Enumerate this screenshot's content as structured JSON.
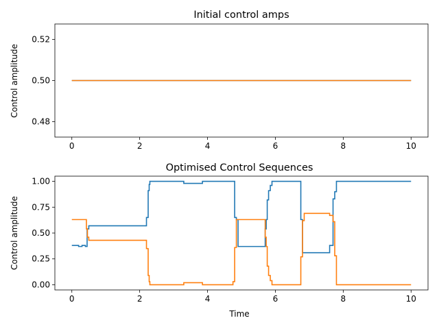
{
  "chart_data": [
    {
      "type": "line",
      "title": "Initial control amps",
      "xlabel": "",
      "ylabel": "Control amplitude",
      "xlim": [
        -0.5,
        10.5
      ],
      "ylim": [
        0.4725,
        0.5275
      ],
      "xticks": [
        0,
        2,
        4,
        6,
        8,
        10
      ],
      "yticks": [
        0.48,
        0.5,
        0.52
      ],
      "ytick_labels": [
        "0.48",
        "0.50",
        "0.52"
      ],
      "grid": false,
      "series": [
        {
          "color": "#1f77b4",
          "x": [
            0,
            10
          ],
          "y": [
            0.5,
            0.5
          ]
        },
        {
          "color": "#ff7f0e",
          "x": [
            0,
            10
          ],
          "y": [
            0.5,
            0.5
          ]
        }
      ]
    },
    {
      "type": "line",
      "step": true,
      "title": "Optimised Control Sequences",
      "xlabel": "Time",
      "ylabel": "Control amplitude",
      "xlim": [
        -0.5,
        10.5
      ],
      "ylim": [
        -0.05,
        1.05
      ],
      "xticks": [
        0,
        2,
        4,
        6,
        8,
        10
      ],
      "yticks": [
        0.0,
        0.25,
        0.5,
        0.75,
        1.0
      ],
      "ytick_labels": [
        "0.00",
        "0.25",
        "0.50",
        "0.75",
        "1.00"
      ],
      "grid": false,
      "series": [
        {
          "color": "#1f77b4",
          "x": [
            0,
            0.2,
            0.3,
            0.4,
            0.45,
            0.5,
            2.2,
            2.25,
            2.28,
            2.3,
            3.3,
            3.85,
            4.8,
            4.85,
            4.9,
            5.7,
            5.73,
            5.76,
            5.8,
            5.85,
            5.9,
            6.75,
            6.8,
            6.85,
            7.6,
            7.7,
            7.75,
            7.8,
            10
          ],
          "y": [
            0.38,
            0.37,
            0.38,
            0.37,
            0.54,
            0.57,
            0.65,
            0.91,
            0.97,
            1.0,
            0.98,
            1.0,
            0.65,
            0.63,
            0.37,
            0.54,
            0.63,
            0.82,
            0.91,
            0.96,
            1.0,
            0.63,
            0.31,
            0.31,
            0.38,
            0.83,
            0.9,
            1.0,
            1.0
          ]
        },
        {
          "color": "#ff7f0e",
          "x": [
            0,
            0.43,
            0.46,
            0.5,
            2.2,
            2.25,
            2.28,
            2.3,
            3.3,
            3.85,
            4.75,
            4.8,
            4.85,
            5.7,
            5.73,
            5.76,
            5.8,
            5.85,
            5.9,
            6.75,
            6.8,
            6.85,
            7.6,
            7.7,
            7.75,
            7.8,
            10
          ],
          "y": [
            0.63,
            0.54,
            0.46,
            0.43,
            0.35,
            0.09,
            0.03,
            0.0,
            0.02,
            0.0,
            0.03,
            0.36,
            0.63,
            0.46,
            0.37,
            0.18,
            0.09,
            0.04,
            0.0,
            0.27,
            0.62,
            0.69,
            0.67,
            0.61,
            0.28,
            0.0,
            0.0
          ]
        }
      ]
    }
  ]
}
